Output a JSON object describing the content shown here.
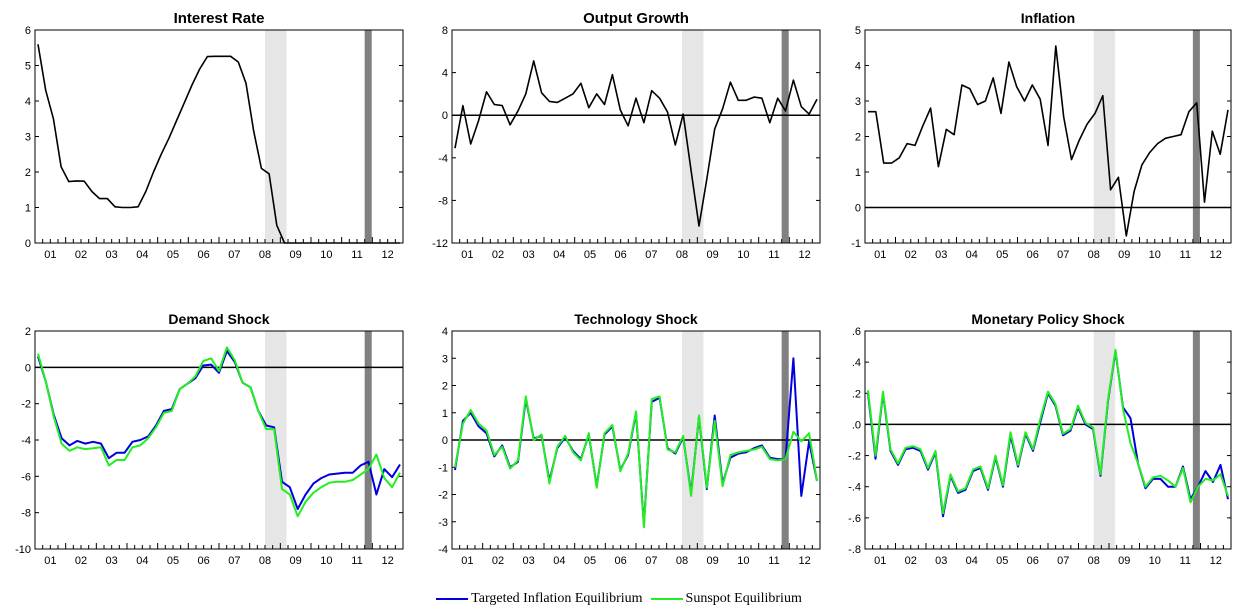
{
  "chart_data": [
    {
      "type": "line",
      "title": "Interest Rate",
      "x_tick_labels": [
        "01",
        "02",
        "03",
        "04",
        "05",
        "06",
        "07",
        "08",
        "09",
        "10",
        "11",
        "12"
      ],
      "ylim": [
        0,
        6
      ],
      "y_tick_labels": [
        "0",
        "1",
        "2",
        "3",
        "4",
        "5",
        "6"
      ],
      "zero_line": false,
      "series": [
        {
          "values": [
            5.6,
            4.3,
            3.5,
            2.15,
            1.73,
            1.75,
            1.74,
            1.45,
            1.25,
            1.25,
            1.02,
            1.0,
            1.0,
            1.02,
            1.45,
            2.0,
            2.5,
            2.95,
            3.45,
            3.95,
            4.45,
            4.9,
            5.25,
            5.26,
            5.26,
            5.26,
            5.1,
            4.5,
            3.15,
            2.1,
            1.95,
            0.5,
            0.0,
            0.0,
            0.0,
            0.0,
            0.0,
            0.0,
            0.0,
            0.0,
            0.0,
            0.0,
            0.0,
            0.0,
            0.0,
            0.0,
            0.0,
            0.0
          ]
        }
      ]
    },
    {
      "type": "line",
      "title": "Output Growth",
      "x_tick_labels": [
        "01",
        "02",
        "03",
        "04",
        "05",
        "06",
        "07",
        "08",
        "09",
        "10",
        "11",
        "12"
      ],
      "ylim": [
        -12,
        8
      ],
      "y_tick_labels": [
        "-12",
        "-8",
        "-4",
        "0",
        "4",
        "8"
      ],
      "zero_line": true,
      "series": [
        {
          "values": [
            -3.1,
            0.9,
            -2.7,
            -0.5,
            2.2,
            1.0,
            0.9,
            -0.9,
            0.4,
            2.0,
            5.1,
            2.1,
            1.3,
            1.2,
            1.6,
            2.0,
            3.0,
            0.7,
            2.0,
            1.0,
            3.8,
            0.5,
            -1.0,
            1.6,
            -0.7,
            2.3,
            1.6,
            0.3,
            -2.8,
            0.1,
            -5.2,
            -10.4,
            -6.0,
            -1.3,
            0.6,
            3.1,
            1.4,
            1.4,
            1.7,
            1.6,
            -0.7,
            1.6,
            0.4,
            3.3,
            0.8,
            0.1,
            1.5
          ]
        }
      ]
    },
    {
      "type": "line",
      "title": "Inflation",
      "x_tick_labels": [
        "01",
        "02",
        "03",
        "04",
        "05",
        "06",
        "07",
        "08",
        "09",
        "10",
        "11",
        "12"
      ],
      "ylim": [
        -1,
        5
      ],
      "y_tick_labels": [
        "-1",
        "0",
        "1",
        "2",
        "3",
        "4",
        "5"
      ],
      "zero_line": true,
      "series": [
        {
          "values": [
            2.7,
            2.7,
            1.25,
            1.25,
            1.4,
            1.8,
            1.75,
            2.3,
            2.8,
            1.15,
            2.2,
            2.05,
            3.45,
            3.35,
            2.9,
            3.0,
            3.65,
            2.65,
            4.1,
            3.4,
            3.0,
            3.45,
            3.05,
            1.75,
            4.55,
            2.55,
            1.35,
            1.9,
            2.35,
            2.65,
            3.15,
            0.5,
            0.85,
            -0.8,
            0.45,
            1.2,
            1.55,
            1.8,
            1.95,
            2.0,
            2.05,
            2.7,
            2.95,
            0.15,
            2.15,
            1.5,
            2.75
          ]
        }
      ]
    },
    {
      "type": "line",
      "title": "Demand Shock",
      "x_tick_labels": [
        "01",
        "02",
        "03",
        "04",
        "05",
        "06",
        "07",
        "08",
        "09",
        "10",
        "11",
        "12"
      ],
      "ylim": [
        -10,
        2
      ],
      "y_tick_labels": [
        "-10",
        "-8",
        "-6",
        "-4",
        "-2",
        "0",
        "2"
      ],
      "zero_line": true,
      "series": [
        {
          "name": "Targeted Inflation Equilibrium",
          "values": [
            0.6,
            -0.8,
            -2.6,
            -3.9,
            -4.3,
            -4.05,
            -4.2,
            -4.1,
            -4.2,
            -5.0,
            -4.7,
            -4.7,
            -4.1,
            -4.0,
            -3.8,
            -3.2,
            -2.4,
            -2.3,
            -1.2,
            -0.9,
            -0.6,
            0.1,
            0.15,
            -0.3,
            0.9,
            0.3,
            -0.85,
            -1.1,
            -2.4,
            -3.2,
            -3.3,
            -6.3,
            -6.6,
            -7.8,
            -7.0,
            -6.4,
            -6.1,
            -5.9,
            -5.85,
            -5.8,
            -5.8,
            -5.4,
            -5.2,
            -7.0,
            -5.6,
            -6.05,
            -5.35
          ]
        },
        {
          "name": "Sunspot Equilibrium",
          "values": [
            0.75,
            -0.8,
            -2.7,
            -4.2,
            -4.6,
            -4.4,
            -4.5,
            -4.45,
            -4.4,
            -5.4,
            -5.1,
            -5.1,
            -4.4,
            -4.3,
            -3.9,
            -3.3,
            -2.5,
            -2.4,
            -1.2,
            -0.9,
            -0.5,
            0.35,
            0.5,
            -0.2,
            1.1,
            0.4,
            -0.85,
            -1.1,
            -2.4,
            -3.4,
            -3.4,
            -6.7,
            -7.0,
            -8.2,
            -7.4,
            -6.9,
            -6.6,
            -6.35,
            -6.3,
            -6.3,
            -6.2,
            -5.9,
            -5.6,
            -4.8,
            -6.1,
            -6.6,
            -5.8
          ]
        }
      ]
    },
    {
      "type": "line",
      "title": "Technology Shock",
      "x_tick_labels": [
        "01",
        "02",
        "03",
        "04",
        "05",
        "06",
        "07",
        "08",
        "09",
        "10",
        "11",
        "12"
      ],
      "ylim": [
        -4,
        4
      ],
      "y_tick_labels": [
        "-4",
        "-3",
        "-2",
        "-1",
        "0",
        "1",
        "2",
        "3",
        "4"
      ],
      "zero_line": true,
      "series": [
        {
          "name": "Targeted Inflation Equilibrium",
          "values": [
            -1.1,
            0.7,
            1.0,
            0.5,
            0.25,
            -0.6,
            -0.2,
            -1.0,
            -0.8,
            1.5,
            0.05,
            0.15,
            -1.5,
            -0.3,
            0.1,
            -0.4,
            -0.7,
            0.2,
            -1.7,
            0.2,
            0.5,
            -1.1,
            -0.55,
            1.0,
            -3.1,
            1.4,
            1.55,
            -0.3,
            -0.5,
            0.1,
            -1.95,
            0.85,
            -1.8,
            0.9,
            -1.6,
            -0.65,
            -0.5,
            -0.45,
            -0.3,
            -0.2,
            -0.65,
            -0.7,
            -0.7,
            3.0,
            -2.05,
            -0.05,
            -1.5
          ]
        },
        {
          "name": "Sunspot Equilibrium",
          "values": [
            -1.0,
            0.6,
            1.1,
            0.6,
            0.35,
            -0.55,
            -0.25,
            -1.05,
            -0.75,
            1.6,
            0.0,
            0.2,
            -1.6,
            -0.25,
            0.15,
            -0.45,
            -0.75,
            0.25,
            -1.75,
            0.25,
            0.55,
            -1.15,
            -0.5,
            1.05,
            -3.2,
            1.5,
            1.6,
            -0.35,
            -0.45,
            0.15,
            -2.05,
            0.9,
            -1.75,
            0.7,
            -1.7,
            -0.55,
            -0.45,
            -0.4,
            -0.35,
            -0.25,
            -0.7,
            -0.75,
            -0.7,
            0.3,
            -0.05,
            0.25,
            -1.5
          ]
        }
      ]
    },
    {
      "type": "line",
      "title": "Monetary Policy Shock",
      "x_tick_labels": [
        "01",
        "02",
        "03",
        "04",
        "05",
        "06",
        "07",
        "08",
        "09",
        "10",
        "11",
        "12"
      ],
      "ylim": [
        -0.8,
        0.6
      ],
      "y_tick_labels": [
        "-.8",
        "-.6",
        "-.4",
        "-.2",
        ".0",
        ".2",
        ".4",
        ".6"
      ],
      "zero_line": true,
      "series": [
        {
          "name": "Targeted Inflation Equilibrium",
          "values": [
            0.2,
            -0.22,
            0.2,
            -0.17,
            -0.26,
            -0.16,
            -0.15,
            -0.17,
            -0.29,
            -0.18,
            -0.59,
            -0.33,
            -0.44,
            -0.42,
            -0.3,
            -0.28,
            -0.42,
            -0.21,
            -0.4,
            -0.07,
            -0.27,
            -0.06,
            -0.17,
            0.02,
            0.2,
            0.12,
            -0.07,
            -0.04,
            0.11,
            0.0,
            -0.03,
            -0.33,
            0.15,
            0.47,
            0.11,
            0.04,
            -0.25,
            -0.41,
            -0.35,
            -0.35,
            -0.4,
            -0.4,
            -0.27,
            -0.48,
            -0.4,
            -0.3,
            -0.37,
            -0.26,
            -0.48
          ]
        },
        {
          "name": "Sunspot Equilibrium",
          "values": [
            0.22,
            -0.2,
            0.21,
            -0.16,
            -0.25,
            -0.15,
            -0.14,
            -0.16,
            -0.28,
            -0.17,
            -0.57,
            -0.32,
            -0.43,
            -0.41,
            -0.29,
            -0.27,
            -0.41,
            -0.2,
            -0.39,
            -0.05,
            -0.26,
            -0.05,
            -0.16,
            0.04,
            0.21,
            0.13,
            -0.06,
            -0.03,
            0.12,
            0.01,
            -0.02,
            -0.32,
            0.16,
            0.48,
            0.1,
            -0.12,
            -0.25,
            -0.4,
            -0.34,
            -0.33,
            -0.36,
            -0.4,
            -0.28,
            -0.5,
            -0.4,
            -0.35,
            -0.36,
            -0.32,
            -0.46
          ]
        }
      ]
    }
  ],
  "legend": {
    "items": [
      {
        "label": "Targeted Inflation Equilibrium",
        "color": "#0000dd"
      },
      {
        "label": "Sunspot Equilibrium",
        "color": "#22ee22"
      }
    ]
  },
  "colors": {
    "single_series": "#000000",
    "recession_band_light": "#e6e6e6",
    "recession_band_dark": "#808080"
  }
}
